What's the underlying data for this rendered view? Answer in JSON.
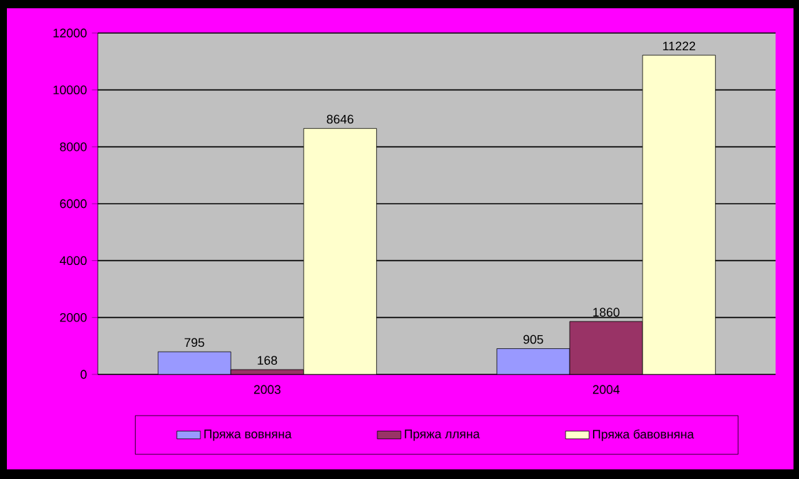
{
  "chart_data": {
    "type": "bar",
    "categories": [
      "2003",
      "2004"
    ],
    "series": [
      {
        "name": "Пряжа вовняна",
        "color": "#9999ff",
        "values": [
          795,
          905
        ]
      },
      {
        "name": "Пряжа лляна",
        "color": "#993366",
        "values": [
          168,
          1860
        ]
      },
      {
        "name": "Пряжа бавовняна",
        "color": "#ffffcc",
        "values": [
          8646,
          11222
        ]
      }
    ],
    "ylim": [
      0,
      12000
    ],
    "yticks": [
      0,
      2000,
      4000,
      6000,
      8000,
      10000,
      12000
    ],
    "grid": "y",
    "legend": "bottom",
    "data_labels": true
  }
}
